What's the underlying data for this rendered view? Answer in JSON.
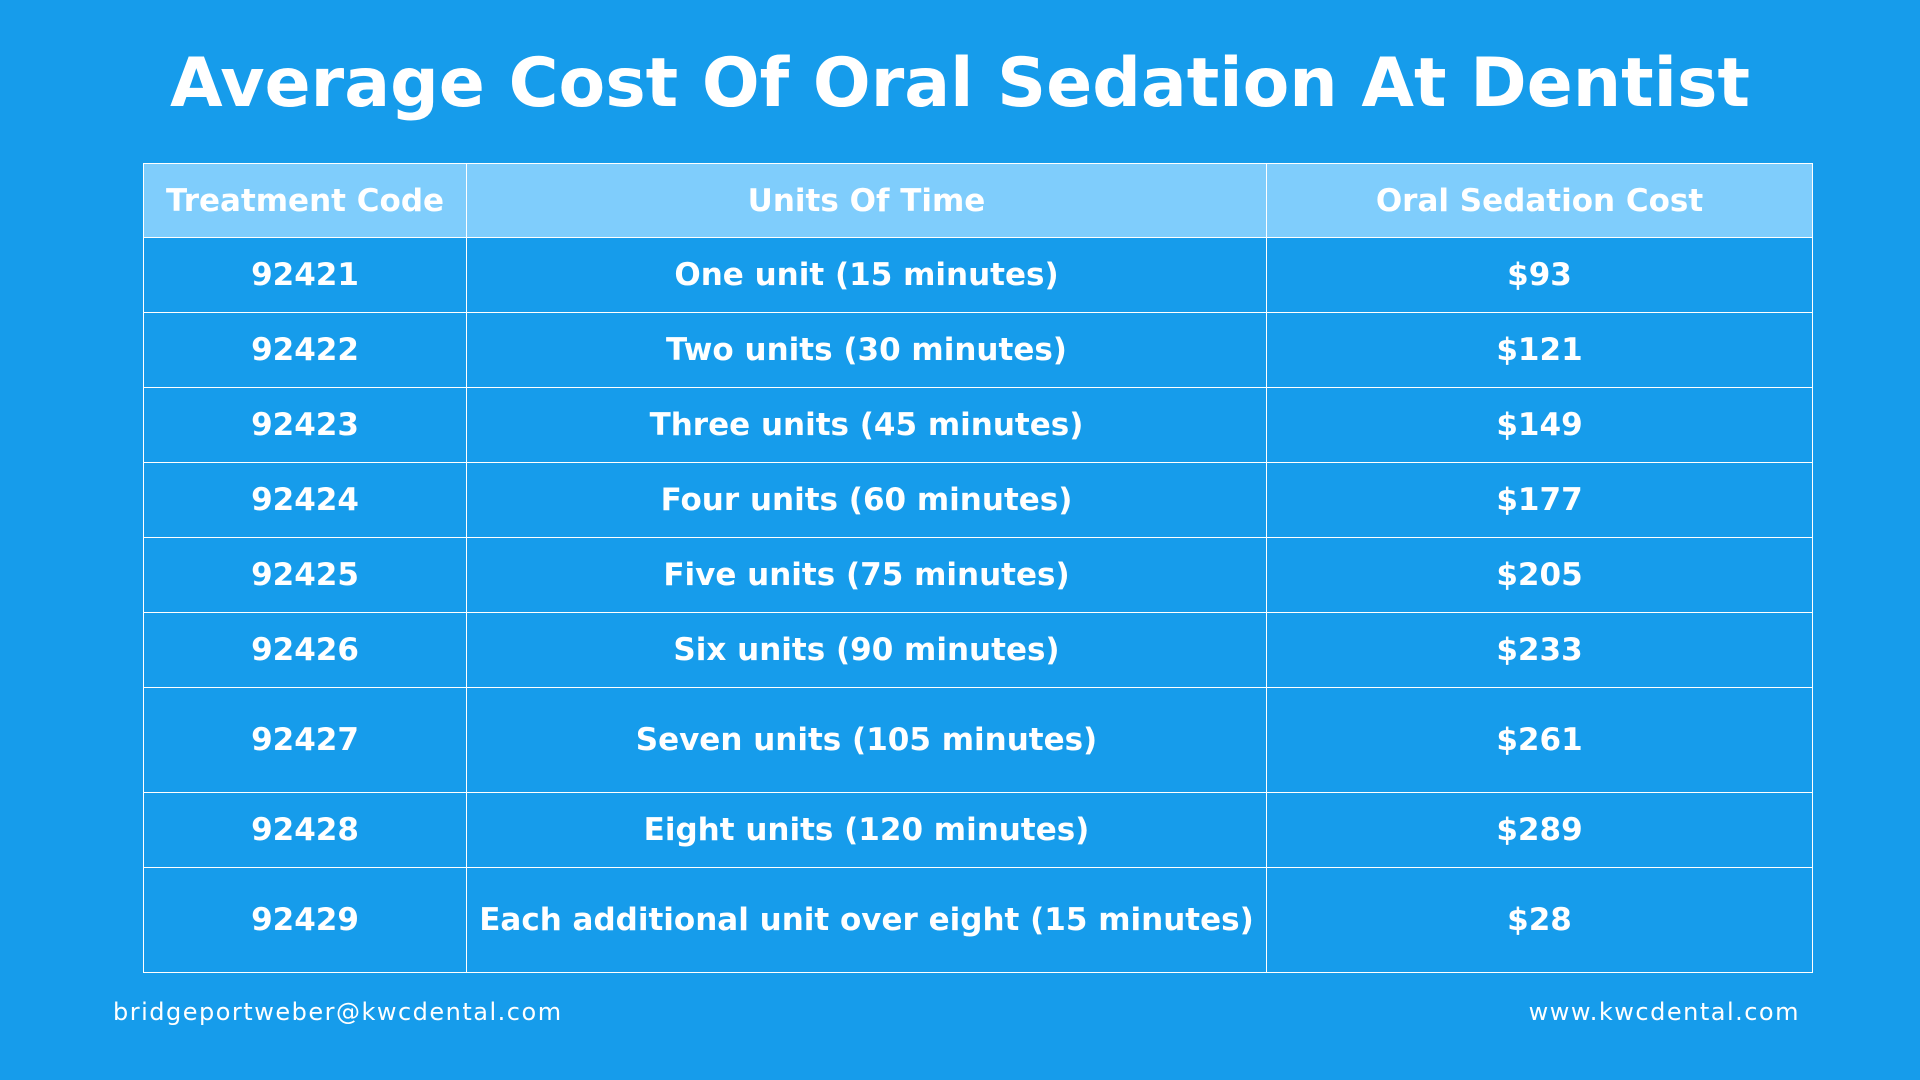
{
  "title": "Average Cost Of Oral Sedation At Dentist",
  "table": {
    "headers": [
      "Treatment Code",
      "Units Of Time",
      "Oral Sedation Cost"
    ],
    "rows": [
      {
        "code": "92421",
        "units": "One unit (15 minutes)",
        "cost": "$93"
      },
      {
        "code": "92422",
        "units": "Two units (30 minutes)",
        "cost": "$121"
      },
      {
        "code": "92423",
        "units": "Three units (45 minutes)",
        "cost": "$149"
      },
      {
        "code": "92424",
        "units": "Four units (60 minutes)",
        "cost": "$177"
      },
      {
        "code": "92425",
        "units": "Five units (75 minutes)",
        "cost": "$205"
      },
      {
        "code": "92426",
        "units": "Six units (90 minutes)",
        "cost": "$233"
      },
      {
        "code": "92427",
        "units": "Seven units (105 minutes)",
        "cost": "$261"
      },
      {
        "code": "92428",
        "units": "Eight units (120 minutes)",
        "cost": "$289"
      },
      {
        "code": "92429",
        "units": "Each additional unit over eight (15 minutes)",
        "cost": "$28"
      }
    ]
  },
  "footer": {
    "email": "bridgeportweber@kwcdental.com",
    "website": "www.kwcdental.com"
  },
  "colors": {
    "background": "#169ceb",
    "header_row": "#7fcdfc",
    "text": "#ffffff",
    "grid": "#ffffff"
  }
}
